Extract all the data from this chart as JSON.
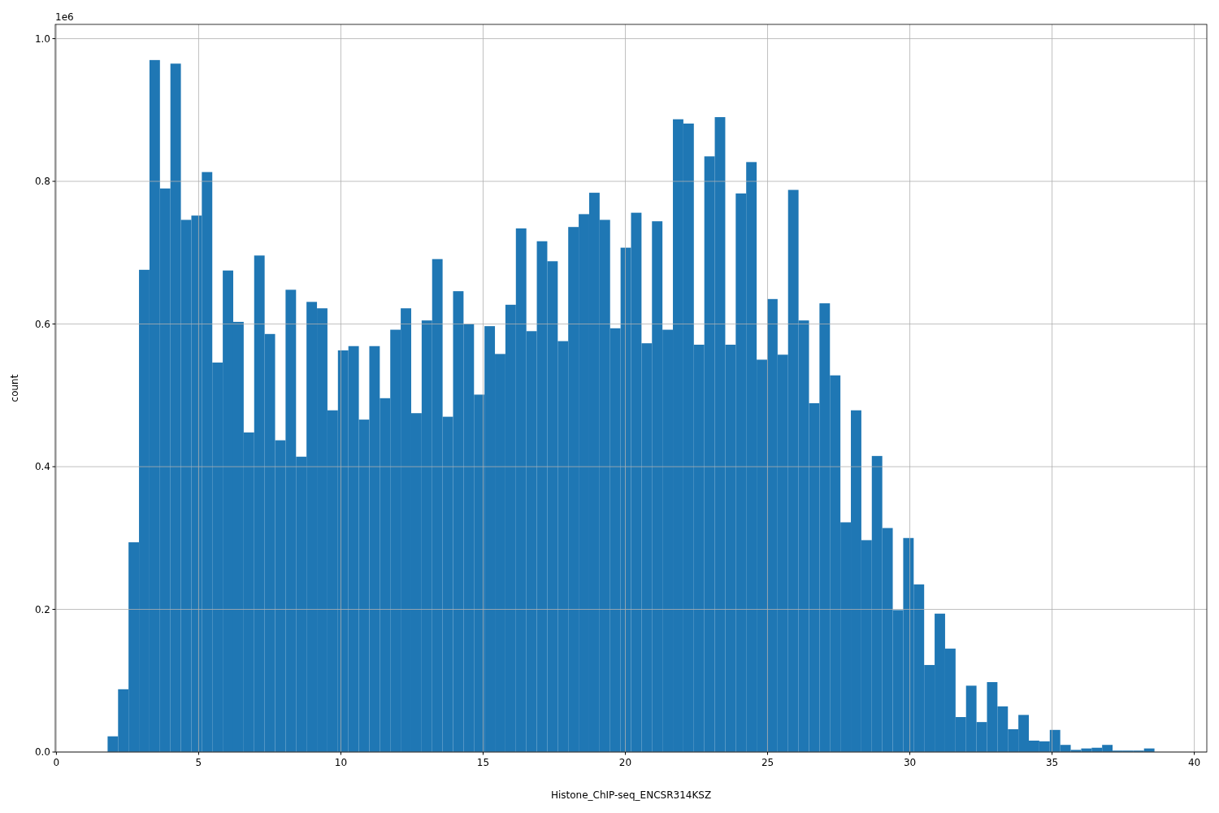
{
  "chart_data": {
    "type": "histogram",
    "xlabel": "Histone_ChIP-seq_ENCSR314KSZ",
    "ylabel": "count",
    "annotations": [
      "1e6"
    ],
    "color": "#1f77b4",
    "bins": [
      1.8,
      2.168,
      2.536,
      2.904,
      3.272,
      3.64,
      4.008,
      4.376,
      4.744,
      5.112,
      5.48,
      5.848,
      6.216,
      6.584,
      6.952,
      7.32,
      7.688,
      8.056,
      8.424,
      8.792,
      9.16,
      9.528,
      9.896,
      10.264,
      10.632,
      11.0,
      11.368,
      11.736,
      12.104,
      12.472,
      12.84,
      13.208,
      13.576,
      13.944,
      14.312,
      14.68,
      15.048,
      15.416,
      15.784,
      16.152,
      16.52,
      16.888,
      17.256,
      17.624,
      17.992,
      18.36,
      18.728,
      19.096,
      19.464,
      19.832,
      20.2,
      20.568,
      20.936,
      21.304,
      21.672,
      22.04,
      22.408,
      22.776,
      23.144,
      23.512,
      23.88,
      24.248,
      24.616,
      24.984,
      25.352,
      25.72,
      26.088,
      26.456,
      26.824,
      27.192,
      27.56,
      27.928,
      28.296,
      28.664,
      29.032,
      29.4,
      29.768,
      30.136,
      30.504,
      30.872,
      31.24,
      31.608,
      31.976,
      32.344,
      32.712,
      33.08,
      33.448,
      33.816,
      34.184,
      34.552,
      34.92,
      35.288,
      35.656,
      36.024,
      36.392,
      36.76,
      37.128,
      37.496,
      37.864,
      38.232,
      38.6
    ],
    "values": [
      0.022,
      0.088,
      0.294,
      0.676,
      0.97,
      0.79,
      0.965,
      0.746,
      0.752,
      0.813,
      0.546,
      0.675,
      0.603,
      0.448,
      0.696,
      0.586,
      0.437,
      0.648,
      0.414,
      0.631,
      0.622,
      0.479,
      0.563,
      0.569,
      0.466,
      0.569,
      0.496,
      0.592,
      0.622,
      0.475,
      0.605,
      0.691,
      0.47,
      0.646,
      0.6,
      0.501,
      0.597,
      0.558,
      0.627,
      0.734,
      0.59,
      0.716,
      0.688,
      0.576,
      0.736,
      0.754,
      0.784,
      0.746,
      0.594,
      0.707,
      0.756,
      0.573,
      0.744,
      0.592,
      0.887,
      0.881,
      0.571,
      0.835,
      0.89,
      0.571,
      0.783,
      0.827,
      0.55,
      0.635,
      0.557,
      0.788,
      0.605,
      0.489,
      0.629,
      0.528,
      0.322,
      0.479,
      0.297,
      0.415,
      0.314,
      0.199,
      0.3,
      0.235,
      0.122,
      0.194,
      0.145,
      0.049,
      0.093,
      0.042,
      0.098,
      0.064,
      0.032,
      0.052,
      0.016,
      0.015,
      0.031,
      0.01,
      0.003,
      0.005,
      0.006,
      0.01,
      0.002,
      0.002,
      0.002,
      0.005
    ],
    "xlim": [
      -0.04,
      40.44
    ],
    "xticks": [
      0,
      5,
      10,
      15,
      20,
      25,
      30,
      35,
      40
    ],
    "ylim": [
      0,
      1.02
    ],
    "yticks": [
      {
        "value": 0,
        "label": "0.0"
      },
      0.2,
      0.4,
      0.6,
      0.8,
      {
        "value": 1,
        "label": "1.0"
      }
    ],
    "grid": true
  }
}
